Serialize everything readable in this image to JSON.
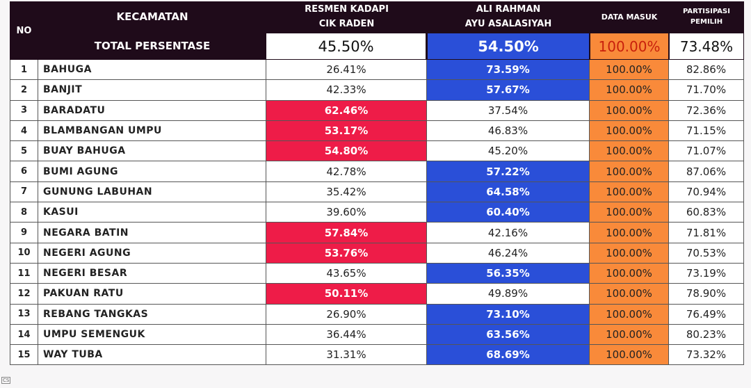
{
  "header": {
    "no": "NO",
    "kecamatan": "KECAMATAN",
    "total_label": "TOTAL PERSENTASE",
    "cand1": [
      "RESMEN KADAPI",
      "CIK RADEN"
    ],
    "cand2": [
      "ALI RAHMAN",
      "AYU ASALASIYAH"
    ],
    "data_masuk": "DATA MASUK",
    "partisipasi": [
      "PARTISIPASI",
      "PEMILIH"
    ]
  },
  "totals": {
    "cand1": "45.50%",
    "cand2": "54.50%",
    "data_masuk": "100.00%",
    "partisipasi": "73.48%"
  },
  "colors": {
    "cand1_win": "#ee1c48",
    "cand2_win": "#2a4fd8",
    "data_masuk": "#f98a3a",
    "header": "#1f0b1a"
  },
  "rows": [
    {
      "no": "1",
      "kec": "BAHUGA",
      "a": "26.41%",
      "b": "73.59%",
      "d": "100.00%",
      "p": "82.86%",
      "win": "b"
    },
    {
      "no": "2",
      "kec": "BANJIT",
      "a": "42.33%",
      "b": "57.67%",
      "d": "100.00%",
      "p": "71.70%",
      "win": "b"
    },
    {
      "no": "3",
      "kec": "BARADATU",
      "a": "62.46%",
      "b": "37.54%",
      "d": "100.00%",
      "p": "72.36%",
      "win": "a"
    },
    {
      "no": "4",
      "kec": "BLAMBANGAN UMPU",
      "a": "53.17%",
      "b": "46.83%",
      "d": "100.00%",
      "p": "71.15%",
      "win": "a"
    },
    {
      "no": "5",
      "kec": "BUAY BAHUGA",
      "a": "54.80%",
      "b": "45.20%",
      "d": "100.00%",
      "p": "71.07%",
      "win": "a"
    },
    {
      "no": "6",
      "kec": "BUMI AGUNG",
      "a": "42.78%",
      "b": "57.22%",
      "d": "100.00%",
      "p": "87.06%",
      "win": "b"
    },
    {
      "no": "7",
      "kec": "GUNUNG LABUHAN",
      "a": "35.42%",
      "b": "64.58%",
      "d": "100.00%",
      "p": "70.94%",
      "win": "b"
    },
    {
      "no": "8",
      "kec": "KASUI",
      "a": "39.60%",
      "b": "60.40%",
      "d": "100.00%",
      "p": "60.83%",
      "win": "b"
    },
    {
      "no": "9",
      "kec": "NEGARA BATIN",
      "a": "57.84%",
      "b": "42.16%",
      "d": "100.00%",
      "p": "71.81%",
      "win": "a"
    },
    {
      "no": "10",
      "kec": "NEGERI AGUNG",
      "a": "53.76%",
      "b": "46.24%",
      "d": "100.00%",
      "p": "70.53%",
      "win": "a"
    },
    {
      "no": "11",
      "kec": "NEGERI BESAR",
      "a": "43.65%",
      "b": "56.35%",
      "d": "100.00%",
      "p": "73.19%",
      "win": "b"
    },
    {
      "no": "12",
      "kec": "PAKUAN RATU",
      "a": "50.11%",
      "b": "49.89%",
      "d": "100.00%",
      "p": "78.90%",
      "win": "a"
    },
    {
      "no": "13",
      "kec": "REBANG TANGKAS",
      "a": "26.90%",
      "b": "73.10%",
      "d": "100.00%",
      "p": "76.49%",
      "win": "b"
    },
    {
      "no": "14",
      "kec": "UMPU SEMENGUK",
      "a": "36.44%",
      "b": "63.56%",
      "d": "100.00%",
      "p": "80.23%",
      "win": "b"
    },
    {
      "no": "15",
      "kec": "WAY TUBA",
      "a": "31.31%",
      "b": "68.69%",
      "d": "100.00%",
      "p": "73.32%",
      "win": "b"
    }
  ],
  "watermark": "CS"
}
